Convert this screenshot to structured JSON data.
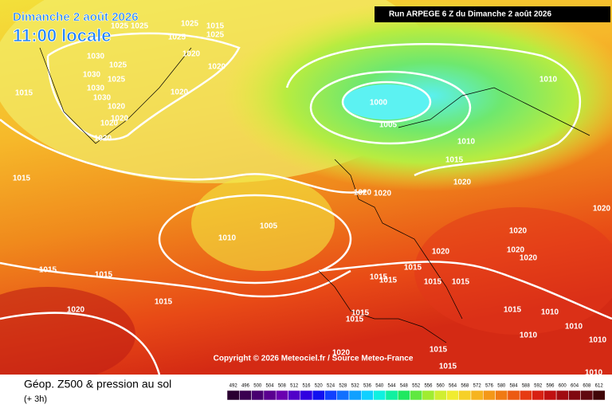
{
  "header": {
    "date": "Dimanche 2 août 2026",
    "time": "11:00 locale",
    "run": "Run ARPEGE 6 Z du Dimanche 2 août 2026"
  },
  "map": {
    "isobar_labels": [
      "1025",
      "1025",
      "1025",
      "1015",
      "1025",
      "1025",
      "1030",
      "1020",
      "1025",
      "1020",
      "1030",
      "1025",
      "1015",
      "1030",
      "1030",
      "1020",
      "1020",
      "1020",
      "1020",
      "1020",
      "1000",
      "1005",
      "1010",
      "1010",
      "1015",
      "1020",
      "1015",
      "1020",
      "1020",
      "1005",
      "1010",
      "1015",
      "1015",
      "1020",
      "1015",
      "1015",
      "1015",
      "1015",
      "1015",
      "1015",
      "1020",
      "1015",
      "1015",
      "1020",
      "1020",
      "1020",
      "1010",
      "1010",
      "1010",
      "1015",
      "1015",
      "1010",
      "1010",
      "1020",
      "1015",
      "1020"
    ],
    "copyright": "Copyright © 2026 Meteociel.fr / Source Meteo-France"
  },
  "legend": {
    "title": "Géop. Z500 & pression au sol",
    "subtitle": "(+ 3h)",
    "scale": [
      492,
      496,
      500,
      504,
      508,
      512,
      516,
      520,
      524,
      528,
      532,
      536,
      540,
      544,
      548,
      552,
      556,
      560,
      564,
      568,
      572,
      576,
      580,
      584,
      588,
      592,
      596,
      600,
      604,
      608,
      612
    ]
  }
}
